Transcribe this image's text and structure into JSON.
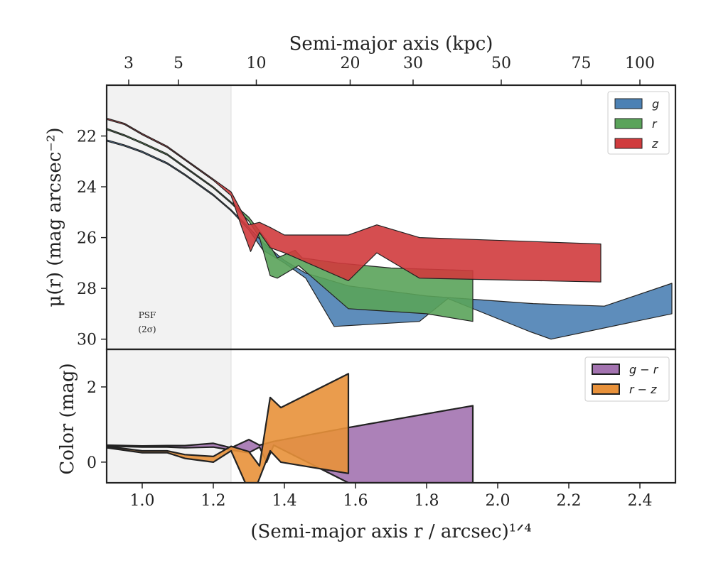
{
  "chart_data": [
    {
      "type": "area",
      "panel": "surface-brightness",
      "ylabel": "μ(r) (mag arcsec⁻²)",
      "ylim": [
        30.4,
        20.0
      ],
      "xlim": [
        0.9,
        2.5
      ],
      "top_axis_label": "Semi-major axis (kpc)",
      "top_ticks": [
        {
          "label": "3",
          "x": 0.962
        },
        {
          "label": "5",
          "x": 1.102
        },
        {
          "label": "10",
          "x": 1.321
        },
        {
          "label": "20",
          "x": 1.585
        },
        {
          "label": "30",
          "x": 1.762
        },
        {
          "label": "50",
          "x": 2.01
        },
        {
          "label": "75",
          "x": 2.235
        },
        {
          "label": "100",
          "x": 2.4
        }
      ],
      "yticks": [
        22,
        24,
        26,
        28,
        30
      ],
      "psf_label": [
        "PSF",
        "(2σ)"
      ],
      "psf_x_range": [
        0.9,
        1.25
      ],
      "legend_position": "top-right",
      "series": [
        {
          "name": "g",
          "color": "#4c81b4",
          "upper": [
            [
              0.9,
              22.15
            ],
            [
              0.95,
              22.35
            ],
            [
              1.0,
              22.6
            ],
            [
              1.07,
              23.05
            ],
            [
              1.12,
              23.5
            ],
            [
              1.2,
              24.3
            ],
            [
              1.25,
              24.9
            ],
            [
              1.3,
              25.6
            ],
            [
              1.34,
              26.2
            ],
            [
              1.4,
              26.9
            ],
            [
              1.46,
              27.4
            ],
            [
              1.58,
              27.9
            ],
            [
              1.8,
              28.3
            ],
            [
              2.1,
              28.6
            ],
            [
              2.3,
              28.7
            ],
            [
              2.49,
              27.8
            ]
          ],
          "lower": [
            [
              0.9,
              22.2
            ],
            [
              0.95,
              22.4
            ],
            [
              1.0,
              22.65
            ],
            [
              1.07,
              23.1
            ],
            [
              1.12,
              23.55
            ],
            [
              1.2,
              24.35
            ],
            [
              1.25,
              24.95
            ],
            [
              1.3,
              25.7
            ],
            [
              1.34,
              26.5
            ],
            [
              1.4,
              27.0
            ],
            [
              1.46,
              27.6
            ],
            [
              1.54,
              29.5
            ],
            [
              1.78,
              29.3
            ],
            [
              1.86,
              28.4
            ],
            [
              2.09,
              29.7
            ],
            [
              2.15,
              30.0
            ],
            [
              2.49,
              29.0
            ]
          ]
        },
        {
          "name": "r",
          "color": "#5aa35a",
          "upper": [
            [
              0.9,
              21.7
            ],
            [
              0.95,
              21.95
            ],
            [
              1.0,
              22.25
            ],
            [
              1.07,
              22.7
            ],
            [
              1.12,
              23.2
            ],
            [
              1.2,
              24.0
            ],
            [
              1.25,
              24.6
            ],
            [
              1.3,
              25.2
            ],
            [
              1.35,
              26.1
            ],
            [
              1.38,
              26.8
            ],
            [
              1.43,
              26.5
            ],
            [
              1.45,
              26.8
            ],
            [
              1.55,
              27.0
            ],
            [
              1.7,
              27.2
            ],
            [
              1.93,
              27.3
            ]
          ],
          "lower": [
            [
              0.9,
              21.75
            ],
            [
              0.95,
              22.0
            ],
            [
              1.0,
              22.3
            ],
            [
              1.07,
              22.75
            ],
            [
              1.12,
              23.25
            ],
            [
              1.2,
              24.05
            ],
            [
              1.25,
              24.65
            ],
            [
              1.3,
              25.35
            ],
            [
              1.33,
              26.0
            ],
            [
              1.36,
              27.5
            ],
            [
              1.38,
              27.6
            ],
            [
              1.44,
              27.1
            ],
            [
              1.58,
              28.8
            ],
            [
              1.8,
              29.0
            ],
            [
              1.93,
              29.3
            ]
          ]
        },
        {
          "name": "z",
          "color": "#d03b3d",
          "upper": [
            [
              0.9,
              21.3
            ],
            [
              0.95,
              21.5
            ],
            [
              1.0,
              21.9
            ],
            [
              1.07,
              22.4
            ],
            [
              1.12,
              22.9
            ],
            [
              1.2,
              23.7
            ],
            [
              1.25,
              24.2
            ],
            [
              1.3,
              25.5
            ],
            [
              1.33,
              25.4
            ],
            [
              1.36,
              25.6
            ],
            [
              1.4,
              25.9
            ],
            [
              1.58,
              25.9
            ],
            [
              1.66,
              25.5
            ],
            [
              1.78,
              26.0
            ],
            [
              2.29,
              26.25
            ]
          ],
          "lower": [
            [
              0.9,
              21.35
            ],
            [
              0.95,
              21.55
            ],
            [
              1.0,
              21.95
            ],
            [
              1.07,
              22.45
            ],
            [
              1.12,
              22.95
            ],
            [
              1.2,
              23.75
            ],
            [
              1.25,
              24.35
            ],
            [
              1.28,
              25.6
            ],
            [
              1.305,
              26.55
            ],
            [
              1.33,
              25.8
            ],
            [
              1.36,
              26.4
            ],
            [
              1.4,
              26.6
            ],
            [
              1.58,
              27.7
            ],
            [
              1.66,
              26.6
            ],
            [
              1.78,
              27.6
            ],
            [
              2.29,
              27.75
            ]
          ]
        }
      ]
    },
    {
      "type": "area",
      "panel": "color",
      "ylabel": "Color (mag)",
      "xlabel": "(Semi-major axis r / arcsec)¹ᐟ⁴",
      "xlim": [
        0.9,
        2.5
      ],
      "ylim": [
        -0.55,
        3.0
      ],
      "xticks": [
        "1.0",
        "1.2",
        "1.4",
        "1.6",
        "1.8",
        "2.0",
        "2.2",
        "2.4"
      ],
      "xtick_values": [
        1.0,
        1.2,
        1.4,
        1.6,
        1.8,
        2.0,
        2.2,
        2.4
      ],
      "yticks": [
        0,
        2
      ],
      "legend_position": "top-right",
      "series": [
        {
          "name": "g − r",
          "color": "#a373b0",
          "upper": [
            [
              0.9,
              0.45
            ],
            [
              1.0,
              0.43
            ],
            [
              1.07,
              0.44
            ],
            [
              1.12,
              0.44
            ],
            [
              1.2,
              0.5
            ],
            [
              1.25,
              0.38
            ],
            [
              1.3,
              0.6
            ],
            [
              1.33,
              0.45
            ],
            [
              1.37,
              0.55
            ],
            [
              1.58,
              0.92
            ],
            [
              1.93,
              1.5
            ]
          ],
          "lower": [
            [
              0.9,
              0.43
            ],
            [
              1.0,
              0.4
            ],
            [
              1.07,
              0.4
            ],
            [
              1.12,
              0.38
            ],
            [
              1.2,
              0.4
            ],
            [
              1.25,
              0.32
            ],
            [
              1.3,
              0.25
            ],
            [
              1.33,
              0.4
            ],
            [
              1.35,
              0.0
            ],
            [
              1.37,
              0.45
            ],
            [
              1.58,
              -0.55
            ],
            [
              1.93,
              -0.55
            ]
          ]
        },
        {
          "name": "r − z",
          "color": "#e8913a",
          "upper": [
            [
              0.9,
              0.42
            ],
            [
              1.0,
              0.3
            ],
            [
              1.07,
              0.3
            ],
            [
              1.12,
              0.2
            ],
            [
              1.2,
              0.15
            ],
            [
              1.25,
              0.42
            ],
            [
              1.3,
              0.28
            ],
            [
              1.33,
              -0.1
            ],
            [
              1.36,
              1.72
            ],
            [
              1.39,
              1.45
            ],
            [
              1.58,
              2.35
            ]
          ],
          "lower": [
            [
              0.9,
              0.38
            ],
            [
              1.0,
              0.25
            ],
            [
              1.07,
              0.25
            ],
            [
              1.12,
              0.1
            ],
            [
              1.2,
              0.0
            ],
            [
              1.25,
              0.3
            ],
            [
              1.29,
              -0.55
            ],
            [
              1.325,
              -0.55
            ],
            [
              1.36,
              0.3
            ],
            [
              1.39,
              0.0
            ],
            [
              1.58,
              -0.3
            ]
          ]
        }
      ]
    }
  ]
}
